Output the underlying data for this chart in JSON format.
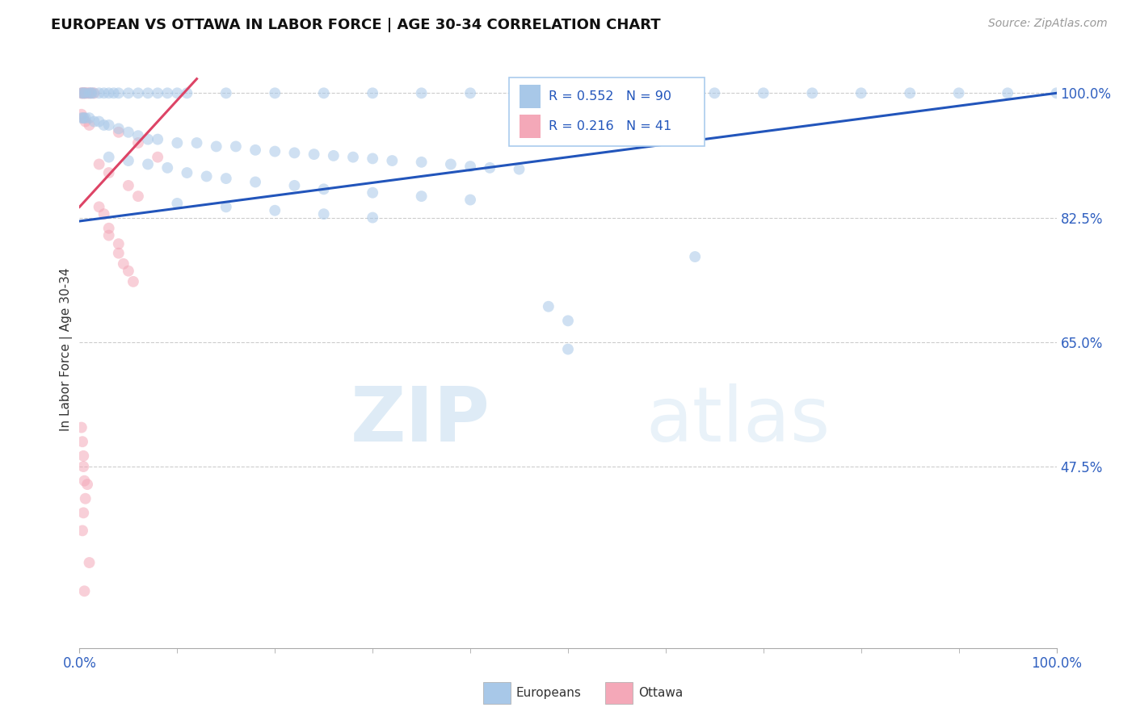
{
  "title": "EUROPEAN VS OTTAWA IN LABOR FORCE | AGE 30-34 CORRELATION CHART",
  "source_text": "Source: ZipAtlas.com",
  "ylabel": "In Labor Force | Age 30-34",
  "watermark": "ZIPatlas",
  "legend_entries": [
    {
      "label": "Europeans",
      "color": "#a8c8e8",
      "R": "0.552",
      "N": "90"
    },
    {
      "label": "Ottawa",
      "color": "#f4a8b8",
      "R": "0.216",
      "N": "41"
    }
  ],
  "blue_scatter": [
    [
      0.002,
      1.0
    ],
    [
      0.004,
      1.0
    ],
    [
      0.006,
      1.0
    ],
    [
      0.01,
      1.0
    ],
    [
      0.012,
      1.0
    ],
    [
      0.014,
      1.0
    ],
    [
      0.02,
      1.0
    ],
    [
      0.025,
      1.0
    ],
    [
      0.03,
      1.0
    ],
    [
      0.035,
      1.0
    ],
    [
      0.04,
      1.0
    ],
    [
      0.05,
      1.0
    ],
    [
      0.06,
      1.0
    ],
    [
      0.07,
      1.0
    ],
    [
      0.08,
      1.0
    ],
    [
      0.09,
      1.0
    ],
    [
      0.1,
      1.0
    ],
    [
      0.11,
      1.0
    ],
    [
      0.15,
      1.0
    ],
    [
      0.2,
      1.0
    ],
    [
      0.25,
      1.0
    ],
    [
      0.3,
      1.0
    ],
    [
      0.35,
      1.0
    ],
    [
      0.4,
      1.0
    ],
    [
      0.45,
      1.0
    ],
    [
      0.5,
      1.0
    ],
    [
      0.55,
      1.0
    ],
    [
      0.6,
      1.0
    ],
    [
      0.65,
      1.0
    ],
    [
      0.7,
      1.0
    ],
    [
      0.75,
      1.0
    ],
    [
      0.8,
      1.0
    ],
    [
      0.85,
      1.0
    ],
    [
      0.9,
      1.0
    ],
    [
      0.95,
      1.0
    ],
    [
      1.0,
      1.0
    ],
    [
      0.002,
      0.965
    ],
    [
      0.004,
      0.965
    ],
    [
      0.006,
      0.965
    ],
    [
      0.01,
      0.965
    ],
    [
      0.015,
      0.96
    ],
    [
      0.02,
      0.96
    ],
    [
      0.025,
      0.955
    ],
    [
      0.03,
      0.955
    ],
    [
      0.04,
      0.95
    ],
    [
      0.05,
      0.945
    ],
    [
      0.06,
      0.94
    ],
    [
      0.07,
      0.935
    ],
    [
      0.08,
      0.935
    ],
    [
      0.1,
      0.93
    ],
    [
      0.12,
      0.93
    ],
    [
      0.14,
      0.925
    ],
    [
      0.16,
      0.925
    ],
    [
      0.18,
      0.92
    ],
    [
      0.2,
      0.918
    ],
    [
      0.22,
      0.916
    ],
    [
      0.24,
      0.914
    ],
    [
      0.26,
      0.912
    ],
    [
      0.28,
      0.91
    ],
    [
      0.3,
      0.908
    ],
    [
      0.32,
      0.905
    ],
    [
      0.35,
      0.903
    ],
    [
      0.38,
      0.9
    ],
    [
      0.4,
      0.897
    ],
    [
      0.42,
      0.895
    ],
    [
      0.45,
      0.893
    ],
    [
      0.03,
      0.91
    ],
    [
      0.05,
      0.905
    ],
    [
      0.07,
      0.9
    ],
    [
      0.09,
      0.895
    ],
    [
      0.11,
      0.888
    ],
    [
      0.13,
      0.883
    ],
    [
      0.15,
      0.88
    ],
    [
      0.18,
      0.875
    ],
    [
      0.22,
      0.87
    ],
    [
      0.25,
      0.865
    ],
    [
      0.3,
      0.86
    ],
    [
      0.35,
      0.855
    ],
    [
      0.4,
      0.85
    ],
    [
      0.1,
      0.845
    ],
    [
      0.15,
      0.84
    ],
    [
      0.2,
      0.835
    ],
    [
      0.25,
      0.83
    ],
    [
      0.3,
      0.825
    ],
    [
      0.48,
      0.7
    ],
    [
      0.5,
      0.68
    ],
    [
      0.63,
      0.77
    ],
    [
      0.5,
      0.64
    ]
  ],
  "pink_scatter": [
    [
      0.002,
      1.0
    ],
    [
      0.003,
      1.0
    ],
    [
      0.004,
      1.0
    ],
    [
      0.005,
      1.0
    ],
    [
      0.006,
      1.0
    ],
    [
      0.008,
      1.0
    ],
    [
      0.01,
      1.0
    ],
    [
      0.012,
      1.0
    ],
    [
      0.015,
      1.0
    ],
    [
      0.002,
      0.97
    ],
    [
      0.004,
      0.965
    ],
    [
      0.006,
      0.96
    ],
    [
      0.01,
      0.955
    ],
    [
      0.04,
      0.945
    ],
    [
      0.06,
      0.93
    ],
    [
      0.08,
      0.91
    ],
    [
      0.02,
      0.9
    ],
    [
      0.03,
      0.888
    ],
    [
      0.05,
      0.87
    ],
    [
      0.06,
      0.855
    ],
    [
      0.02,
      0.84
    ],
    [
      0.025,
      0.83
    ],
    [
      0.03,
      0.81
    ],
    [
      0.03,
      0.8
    ],
    [
      0.04,
      0.788
    ],
    [
      0.04,
      0.775
    ],
    [
      0.045,
      0.76
    ],
    [
      0.05,
      0.75
    ],
    [
      0.055,
      0.735
    ],
    [
      0.002,
      0.53
    ],
    [
      0.003,
      0.51
    ],
    [
      0.004,
      0.49
    ],
    [
      0.004,
      0.475
    ],
    [
      0.005,
      0.455
    ],
    [
      0.003,
      0.385
    ],
    [
      0.004,
      0.41
    ],
    [
      0.006,
      0.43
    ],
    [
      0.008,
      0.45
    ],
    [
      0.01,
      0.34
    ],
    [
      0.005,
      0.3
    ]
  ],
  "blue_line_x": [
    0.0,
    1.0
  ],
  "blue_line_y": [
    0.82,
    1.0
  ],
  "pink_line_x": [
    0.0,
    0.12
  ],
  "pink_line_y": [
    0.84,
    1.02
  ],
  "background_color": "#ffffff",
  "grid_color": "#cccccc",
  "xmin": 0.0,
  "xmax": 1.0,
  "ymin": 0.22,
  "ymax": 1.06,
  "yticks": [
    1.0,
    0.825,
    0.65,
    0.475
  ],
  "ytick_labels": [
    "100.0%",
    "82.5%",
    "65.0%",
    "47.5%"
  ],
  "xtick_labels": [
    "0.0%",
    "100.0%"
  ],
  "dot_size": 100,
  "dot_alpha": 0.55,
  "line_width": 2.2,
  "blue_line_color": "#2255bb",
  "pink_line_color": "#dd4466",
  "title_fontsize": 13,
  "tick_fontsize": 12,
  "ylabel_fontsize": 11
}
